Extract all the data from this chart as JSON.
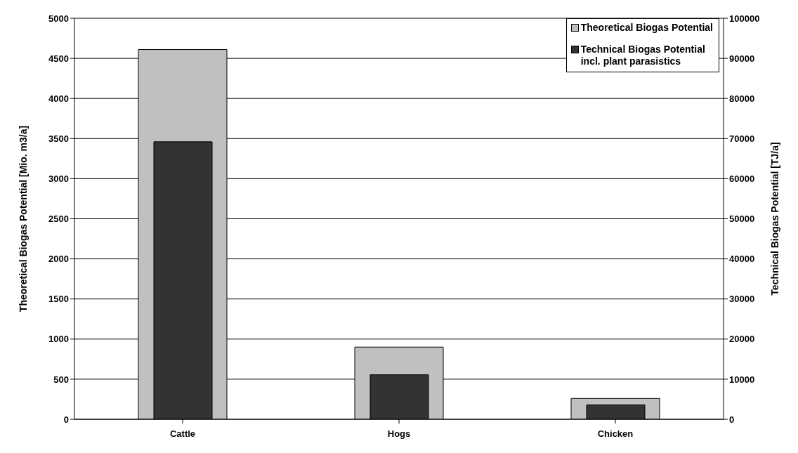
{
  "chart_data": {
    "type": "bar",
    "categories": [
      "Cattle",
      "Hogs",
      "Chicken"
    ],
    "series": [
      {
        "name": "Theoretical Biogas Potential",
        "color": "#c0c0c0",
        "values": [
          4610,
          900,
          260
        ]
      },
      {
        "name": "Technical Biogas Potential\nincl. plant parasistics",
        "color": "#333333",
        "values": [
          69200,
          11100,
          3600
        ],
        "axis": "y2"
      }
    ],
    "ylabel": "Theoretical Biogas Potential [Mio. m3/a]",
    "y2label": "Technical Biogas Potential [TJ/a]",
    "ylim": [
      0,
      5000
    ],
    "yticks": [
      0,
      500,
      1000,
      1500,
      2000,
      2500,
      3000,
      3500,
      4000,
      4500,
      5000
    ],
    "y2lim": [
      0,
      100000
    ],
    "y2ticks": [
      0,
      10000,
      20000,
      30000,
      40000,
      50000,
      60000,
      70000,
      80000,
      90000,
      100000
    ],
    "grid": "y",
    "legend": "top right"
  }
}
